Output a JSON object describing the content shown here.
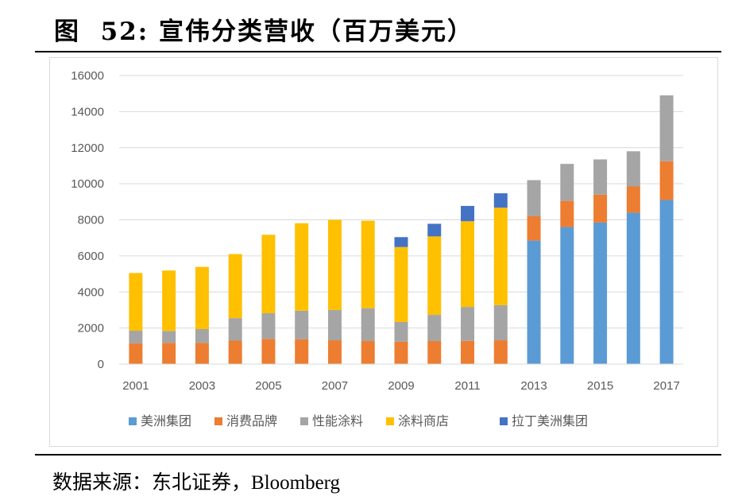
{
  "figure": {
    "label": "图",
    "number": "52:",
    "title": "宣伟分类营收（百万美元）",
    "source_prefix": "数据来源：东北证券，",
    "source_name": "Bloomberg"
  },
  "colors": {
    "美洲集团": "#5b9bd5",
    "消费品牌": "#ed7d31",
    "性能涂料": "#a5a5a5",
    "涂料商店": "#ffc000",
    "拉丁美洲集团": "#4472c4",
    "gridline": "#d9d9d9",
    "tick_text": "#595959"
  },
  "chart_data": {
    "type": "bar",
    "stacked": true,
    "categories": [
      "2001",
      "2002",
      "2003",
      "2004",
      "2005",
      "2006",
      "2007",
      "2008",
      "2009",
      "2010",
      "2011",
      "2012",
      "2013",
      "2014",
      "2015",
      "2016",
      "2017"
    ],
    "x_tick_labels": [
      "2001",
      "",
      "2003",
      "",
      "2005",
      "",
      "2007",
      "",
      "2009",
      "",
      "2011",
      "",
      "2013",
      "",
      "2015",
      "",
      "2017"
    ],
    "ylim": [
      0,
      16000
    ],
    "y_ticks": [
      0,
      2000,
      4000,
      6000,
      8000,
      10000,
      12000,
      14000,
      16000
    ],
    "grid": true,
    "legend_position": "bottom",
    "series": [
      {
        "name": "美洲集团",
        "values": [
          0,
          0,
          0,
          0,
          0,
          0,
          0,
          0,
          0,
          0,
          0,
          0,
          6850,
          7600,
          7850,
          8400,
          9100
        ]
      },
      {
        "name": "消费品牌",
        "values": [
          1150,
          1180,
          1180,
          1300,
          1400,
          1380,
          1320,
          1280,
          1240,
          1280,
          1290,
          1320,
          1350,
          1450,
          1550,
          1450,
          2150
        ]
      },
      {
        "name": "性能涂料",
        "values": [
          700,
          660,
          760,
          1250,
          1420,
          1580,
          1680,
          1820,
          1100,
          1450,
          1880,
          1950,
          2000,
          2050,
          1950,
          1950,
          3650
        ]
      },
      {
        "name": "涂料商店",
        "values": [
          3200,
          3350,
          3450,
          3550,
          4350,
          4850,
          5000,
          4850,
          4150,
          4350,
          4750,
          5400,
          0,
          0,
          0,
          0,
          0
        ]
      },
      {
        "name": "拉丁美洲集团",
        "values": [
          0,
          0,
          0,
          0,
          0,
          0,
          0,
          0,
          550,
          700,
          850,
          800,
          0,
          0,
          0,
          0,
          0
        ]
      }
    ]
  }
}
